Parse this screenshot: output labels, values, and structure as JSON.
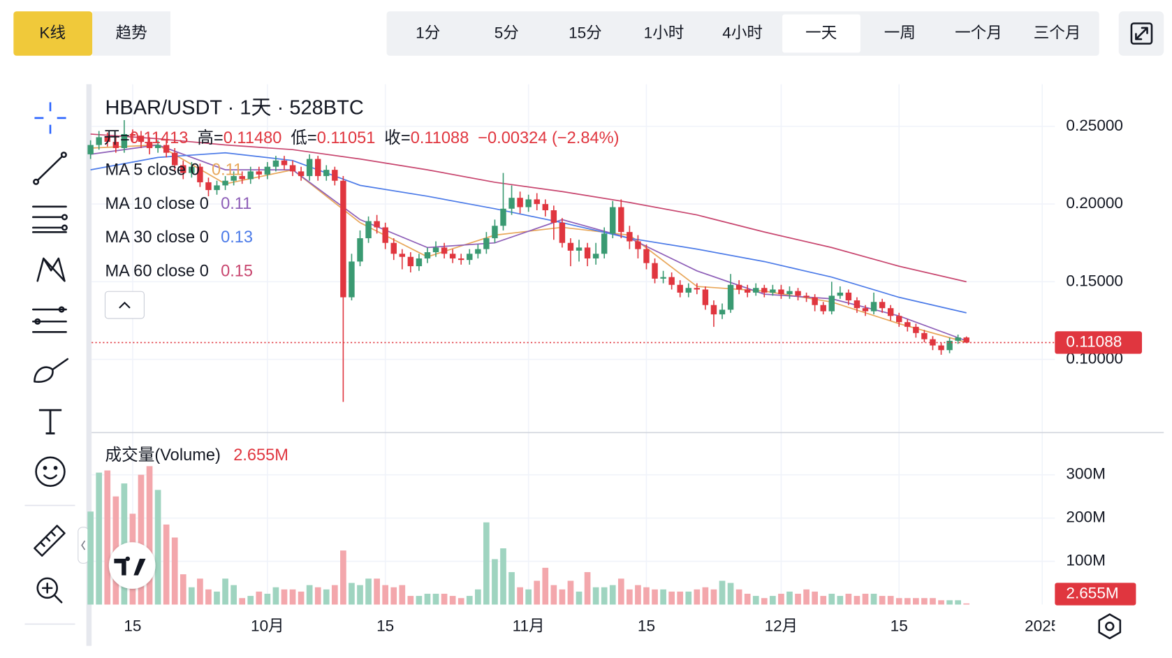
{
  "toolbar": {
    "chart_modes": [
      "K线",
      "趋势"
    ],
    "intervals": [
      "1分",
      "5分",
      "15分",
      "1小时",
      "4小时",
      "一天",
      "一周",
      "一个月",
      "三个月"
    ]
  },
  "chart_data": [
    {
      "type": "candlestick",
      "title": "HBAR/USDT · 1天 · 528BTC",
      "ohlc_legend": [
        {
          "label": "开=",
          "text": "0.11413"
        },
        {
          "label": "高=",
          "text": "0.11480"
        },
        {
          "label": "低=",
          "text": "0.11051"
        },
        {
          "label": "收=",
          "text": "0.11088"
        }
      ],
      "change": "−0.00324 (−2.84%)",
      "up_color": "#3a9a72",
      "down_color": "#e0363f",
      "open": [
        0.232,
        0.238,
        0.243,
        0.24,
        0.236,
        0.245,
        0.244,
        0.24,
        0.236,
        0.238,
        0.233,
        0.225,
        0.22,
        0.224,
        0.214,
        0.209,
        0.212,
        0.215,
        0.218,
        0.216,
        0.221,
        0.219,
        0.224,
        0.228,
        0.225,
        0.221,
        0.218,
        0.229,
        0.218,
        0.222,
        0.215,
        0.14,
        0.163,
        0.178,
        0.189,
        0.185,
        0.175,
        0.168,
        0.166,
        0.16,
        0.165,
        0.169,
        0.172,
        0.168,
        0.165,
        0.164,
        0.168,
        0.171,
        0.178,
        0.186,
        0.197,
        0.204,
        0.198,
        0.203,
        0.2,
        0.196,
        0.188,
        0.175,
        0.17,
        0.172,
        0.165,
        0.168,
        0.181,
        0.198,
        0.182,
        0.176,
        0.171,
        0.162,
        0.152,
        0.153,
        0.148,
        0.143,
        0.146,
        0.145,
        0.135,
        0.129,
        0.132,
        0.148,
        0.145,
        0.143,
        0.146,
        0.143,
        0.145,
        0.142,
        0.144,
        0.141,
        0.14,
        0.135,
        0.131,
        0.141,
        0.143,
        0.138,
        0.133,
        0.131,
        0.137,
        0.133,
        0.128,
        0.124,
        0.121,
        0.117,
        0.113,
        0.109,
        0.106,
        0.112,
        0.11413
      ],
      "high": [
        0.241,
        0.247,
        0.246,
        0.243,
        0.254,
        0.248,
        0.247,
        0.243,
        0.241,
        0.241,
        0.236,
        0.228,
        0.227,
        0.226,
        0.217,
        0.215,
        0.218,
        0.221,
        0.221,
        0.224,
        0.224,
        0.227,
        0.231,
        0.231,
        0.228,
        0.224,
        0.232,
        0.231,
        0.225,
        0.224,
        0.218,
        0.168,
        0.183,
        0.192,
        0.193,
        0.188,
        0.178,
        0.171,
        0.169,
        0.168,
        0.172,
        0.176,
        0.175,
        0.171,
        0.168,
        0.171,
        0.174,
        0.182,
        0.19,
        0.22,
        0.212,
        0.208,
        0.206,
        0.207,
        0.203,
        0.199,
        0.191,
        0.178,
        0.177,
        0.175,
        0.175,
        0.185,
        0.202,
        0.203,
        0.186,
        0.18,
        0.174,
        0.165,
        0.157,
        0.156,
        0.151,
        0.149,
        0.149,
        0.147,
        0.138,
        0.136,
        0.155,
        0.151,
        0.148,
        0.149,
        0.148,
        0.148,
        0.148,
        0.147,
        0.146,
        0.143,
        0.142,
        0.137,
        0.15,
        0.147,
        0.145,
        0.14,
        0.135,
        0.143,
        0.139,
        0.135,
        0.13,
        0.126,
        0.123,
        0.119,
        0.115,
        0.111,
        0.114,
        0.116,
        0.1148
      ],
      "low": [
        0.229,
        0.235,
        0.237,
        0.233,
        0.233,
        0.24,
        0.236,
        0.232,
        0.233,
        0.23,
        0.221,
        0.216,
        0.217,
        0.211,
        0.205,
        0.206,
        0.209,
        0.212,
        0.213,
        0.213,
        0.216,
        0.216,
        0.221,
        0.222,
        0.218,
        0.215,
        0.215,
        0.215,
        0.215,
        0.212,
        0.0727,
        0.138,
        0.16,
        0.175,
        0.181,
        0.171,
        0.164,
        0.158,
        0.156,
        0.157,
        0.162,
        0.166,
        0.165,
        0.162,
        0.161,
        0.161,
        0.165,
        0.168,
        0.175,
        0.183,
        0.193,
        0.194,
        0.195,
        0.196,
        0.192,
        0.177,
        0.172,
        0.16,
        0.163,
        0.16,
        0.161,
        0.165,
        0.178,
        0.178,
        0.171,
        0.165,
        0.158,
        0.149,
        0.149,
        0.145,
        0.14,
        0.14,
        0.142,
        0.132,
        0.121,
        0.126,
        0.13,
        0.142,
        0.14,
        0.141,
        0.14,
        0.141,
        0.139,
        0.139,
        0.138,
        0.137,
        0.131,
        0.129,
        0.129,
        0.139,
        0.135,
        0.13,
        0.128,
        0.129,
        0.13,
        0.125,
        0.121,
        0.118,
        0.114,
        0.111,
        0.106,
        0.103,
        0.104,
        0.11,
        0.11051
      ],
      "close": [
        0.238,
        0.243,
        0.24,
        0.236,
        0.245,
        0.244,
        0.24,
        0.236,
        0.238,
        0.233,
        0.225,
        0.22,
        0.224,
        0.214,
        0.209,
        0.212,
        0.215,
        0.218,
        0.216,
        0.221,
        0.219,
        0.224,
        0.228,
        0.225,
        0.221,
        0.218,
        0.229,
        0.218,
        0.222,
        0.215,
        0.14,
        0.163,
        0.178,
        0.189,
        0.185,
        0.175,
        0.168,
        0.166,
        0.16,
        0.165,
        0.169,
        0.172,
        0.168,
        0.165,
        0.164,
        0.168,
        0.171,
        0.178,
        0.186,
        0.197,
        0.204,
        0.198,
        0.203,
        0.2,
        0.196,
        0.188,
        0.175,
        0.17,
        0.172,
        0.165,
        0.168,
        0.181,
        0.198,
        0.182,
        0.176,
        0.171,
        0.162,
        0.152,
        0.153,
        0.148,
        0.143,
        0.146,
        0.145,
        0.135,
        0.129,
        0.132,
        0.148,
        0.145,
        0.143,
        0.146,
        0.143,
        0.145,
        0.142,
        0.144,
        0.141,
        0.14,
        0.135,
        0.131,
        0.141,
        0.143,
        0.138,
        0.133,
        0.131,
        0.137,
        0.133,
        0.128,
        0.124,
        0.121,
        0.117,
        0.113,
        0.109,
        0.106,
        0.112,
        0.11413,
        0.11088
      ],
      "series": [
        {
          "name": "MA 5 close 0",
          "legend_value": "0.11",
          "color": "#e8a75a",
          "x": [
            0,
            8,
            16,
            24,
            32,
            40,
            48,
            56,
            64,
            72,
            80,
            88,
            96,
            104
          ],
          "values": [
            0.236,
            0.238,
            0.213,
            0.222,
            0.188,
            0.166,
            0.18,
            0.185,
            0.18,
            0.147,
            0.144,
            0.137,
            0.123,
            0.111
          ]
        },
        {
          "name": "MA 10 close 0",
          "legend_value": "0.11",
          "color": "#8e5fb8",
          "x": [
            0,
            8,
            16,
            24,
            32,
            40,
            48,
            56,
            64,
            72,
            80,
            88,
            96,
            104
          ],
          "values": [
            0.232,
            0.238,
            0.222,
            0.222,
            0.19,
            0.172,
            0.175,
            0.19,
            0.178,
            0.157,
            0.142,
            0.139,
            0.128,
            0.112
          ]
        },
        {
          "name": "MA 30 close 0",
          "legend_value": "0.13",
          "color": "#4c7be8",
          "x": [
            0,
            8,
            16,
            24,
            32,
            40,
            48,
            56,
            64,
            72,
            80,
            88,
            96,
            104
          ],
          "values": [
            0.222,
            0.23,
            0.233,
            0.228,
            0.212,
            0.205,
            0.197,
            0.188,
            0.178,
            0.171,
            0.163,
            0.153,
            0.14,
            0.13
          ]
        },
        {
          "name": "MA 60 close 0",
          "legend_value": "0.15",
          "color": "#c8466f",
          "x": [
            0,
            8,
            16,
            24,
            32,
            40,
            48,
            56,
            64,
            72,
            80,
            88,
            96,
            104
          ],
          "values": [
            0.245,
            0.242,
            0.238,
            0.235,
            0.229,
            0.222,
            0.214,
            0.208,
            0.201,
            0.193,
            0.182,
            0.172,
            0.16,
            0.15
          ]
        }
      ],
      "xlim": [
        -0.5,
        114.5
      ],
      "ylim": [
        0.0534,
        0.2771
      ],
      "yticks": [
        {
          "value": 0.25,
          "label": "0.25000"
        },
        {
          "value": 0.2,
          "label": "0.20000"
        },
        {
          "value": 0.15,
          "label": "0.15000"
        },
        {
          "value": 0.1,
          "label": "0.10000"
        }
      ],
      "grid": true
    },
    {
      "type": "bar",
      "title": "成交量(Volume)",
      "legend_value": "2.655M",
      "up_color": "#9fd4c0",
      "down_color": "#f3a7ac",
      "values": [
        215,
        305,
        310,
        250,
        280,
        210,
        300,
        320,
        265,
        185,
        155,
        70,
        40,
        60,
        35,
        30,
        60,
        45,
        15,
        20,
        30,
        25,
        40,
        35,
        35,
        30,
        45,
        40,
        35,
        45,
        125,
        50,
        45,
        60,
        60,
        45,
        40,
        45,
        20,
        20,
        25,
        25,
        25,
        20,
        15,
        20,
        35,
        190,
        105,
        130,
        75,
        40,
        35,
        55,
        85,
        45,
        35,
        55,
        30,
        75,
        40,
        40,
        45,
        60,
        35,
        45,
        40,
        35,
        35,
        30,
        30,
        30,
        35,
        40,
        35,
        55,
        50,
        35,
        25,
        20,
        15,
        20,
        25,
        30,
        25,
        35,
        30,
        20,
        25,
        20,
        25,
        20,
        25,
        25,
        20,
        20,
        15,
        15,
        15,
        15,
        15,
        10,
        10,
        10,
        2.655
      ],
      "xlim": [
        -0.5,
        114.5
      ],
      "ylim": [
        0,
        394
      ],
      "yticks": [
        {
          "value": 300,
          "label": "300M"
        },
        {
          "value": 200,
          "label": "200M"
        },
        {
          "value": 100,
          "label": "100M"
        }
      ],
      "xticks": [
        {
          "value": 5,
          "label": "15"
        },
        {
          "value": 21,
          "label": "10月"
        },
        {
          "value": 35,
          "label": "15"
        },
        {
          "value": 52,
          "label": "11月"
        },
        {
          "value": 66,
          "label": "15"
        },
        {
          "value": 82,
          "label": "12月"
        },
        {
          "value": 96,
          "label": "15"
        },
        {
          "value": 113,
          "label": "2025"
        }
      ],
      "grid": true
    }
  ]
}
